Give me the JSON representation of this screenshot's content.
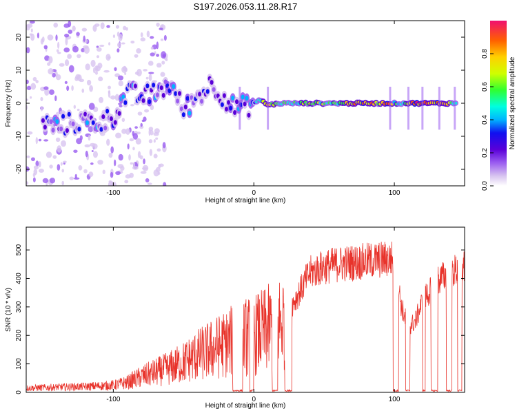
{
  "title": "S197.2026.053.11.28.R17",
  "colors": {
    "snr_line": "#e8332b",
    "colormap": [
      "#ffffff",
      "#d8c4f0",
      "#9a5cf0",
      "#5a00d8",
      "#1010f0",
      "#00b4ff",
      "#00ffe0",
      "#30ff30",
      "#d0ff00",
      "#ffd000",
      "#ff6000",
      "#f01070"
    ]
  },
  "chart_data": [
    {
      "id": "spectrogram",
      "type": "heatmap",
      "xlabel": "Height of straight line (km)",
      "ylabel": "Frequency (Hz)",
      "xlim": [
        -162,
        150
      ],
      "ylim": [
        -25,
        25
      ],
      "xticks": [
        -100,
        0,
        100
      ],
      "yticks": [
        -20,
        -10,
        0,
        10,
        20
      ],
      "colorbar": {
        "label": "Normalized spectral amplitude",
        "range": [
          0,
          1
        ],
        "ticks": [
          "0.0",
          "0.2",
          "0.4",
          "0.6",
          "0.8"
        ]
      },
      "ridge": [
        {
          "x": -150,
          "f": -6,
          "amp": 0.3
        },
        {
          "x": -140,
          "f": -7,
          "amp": 0.3
        },
        {
          "x": -130,
          "f": -6,
          "amp": 0.25
        },
        {
          "x": -120,
          "f": -5.5,
          "amp": 0.3
        },
        {
          "x": -110,
          "f": -6,
          "amp": 0.3
        },
        {
          "x": -100,
          "f": -4,
          "amp": 0.3
        },
        {
          "x": -90,
          "f": 3,
          "amp": 0.35
        },
        {
          "x": -80,
          "f": 2,
          "amp": 0.35
        },
        {
          "x": -70,
          "f": 3,
          "amp": 0.35
        },
        {
          "x": -60,
          "f": 6,
          "amp": 0.3
        },
        {
          "x": -50,
          "f": -2,
          "amp": 0.3
        },
        {
          "x": -40,
          "f": 2,
          "amp": 0.3
        },
        {
          "x": -30,
          "f": 6,
          "amp": 0.25
        },
        {
          "x": -15,
          "f": -1,
          "amp": 0.35
        },
        {
          "x": -5,
          "f": -1,
          "amp": 0.35
        },
        {
          "x": 5,
          "f": 1,
          "amp": 0.5
        },
        {
          "x": 10,
          "f": -0.5,
          "amp": 0.8
        },
        {
          "x": 20,
          "f": 0,
          "amp": 0.55
        },
        {
          "x": 40,
          "f": 0,
          "amp": 0.6
        },
        {
          "x": 60,
          "f": 0,
          "amp": 0.65
        },
        {
          "x": 75,
          "f": 0,
          "amp": 0.85
        },
        {
          "x": 90,
          "f": 0,
          "amp": 0.7
        },
        {
          "x": 95,
          "f": 0,
          "amp": 0.9
        },
        {
          "x": 100,
          "f": 0,
          "amp": 0.6
        },
        {
          "x": 105,
          "f": 0,
          "amp": 0.5
        },
        {
          "x": 113,
          "f": 0,
          "amp": 0.85
        },
        {
          "x": 125,
          "f": 0,
          "amp": 0.85
        },
        {
          "x": 135,
          "f": 0,
          "amp": 0.8
        },
        {
          "x": 145,
          "f": 0,
          "amp": 0.6
        }
      ]
    },
    {
      "id": "snr",
      "type": "line",
      "xlabel": "Height of straight line (km)",
      "ylabel": "SNR (10 * v/v)",
      "xlim": [
        -162,
        150
      ],
      "ylim": [
        0,
        580
      ],
      "xticks": [
        -100,
        0,
        100
      ],
      "yticks": [
        0,
        100,
        200,
        300,
        400,
        500
      ],
      "envelope": [
        {
          "x": -162,
          "snr": 15
        },
        {
          "x": -140,
          "snr": 18
        },
        {
          "x": -120,
          "snr": 20
        },
        {
          "x": -100,
          "snr": 25
        },
        {
          "x": -90,
          "snr": 35
        },
        {
          "x": -80,
          "snr": 55
        },
        {
          "x": -70,
          "snr": 70
        },
        {
          "x": -60,
          "snr": 85
        },
        {
          "x": -50,
          "snr": 105
        },
        {
          "x": -40,
          "snr": 130
        },
        {
          "x": -30,
          "snr": 150
        },
        {
          "x": -20,
          "snr": 170
        },
        {
          "x": -10,
          "snr": 190
        },
        {
          "x": 0,
          "snr": 200
        },
        {
          "x": 10,
          "snr": 220
        },
        {
          "x": 20,
          "snr": 250
        },
        {
          "x": 30,
          "snr": 330
        },
        {
          "x": 40,
          "snr": 420
        },
        {
          "x": 50,
          "snr": 440
        },
        {
          "x": 60,
          "snr": 450
        },
        {
          "x": 70,
          "snr": 455
        },
        {
          "x": 80,
          "snr": 460
        },
        {
          "x": 90,
          "snr": 465
        },
        {
          "x": 100,
          "snr": 470
        },
        {
          "x": 105,
          "snr": 300
        },
        {
          "x": 110,
          "snr": 230
        },
        {
          "x": 115,
          "snr": 250
        },
        {
          "x": 120,
          "snr": 320
        },
        {
          "x": 130,
          "snr": 390
        },
        {
          "x": 140,
          "snr": 420
        },
        {
          "x": 150,
          "snr": 440
        }
      ],
      "dropouts": [
        [
          -15,
          -8
        ],
        [
          -3,
          0
        ],
        [
          13,
          17
        ],
        [
          22,
          27
        ],
        [
          99,
          103
        ],
        [
          108,
          111
        ],
        [
          120,
          122
        ],
        [
          126,
          131
        ],
        [
          137,
          141
        ],
        [
          145,
          148
        ]
      ]
    }
  ]
}
